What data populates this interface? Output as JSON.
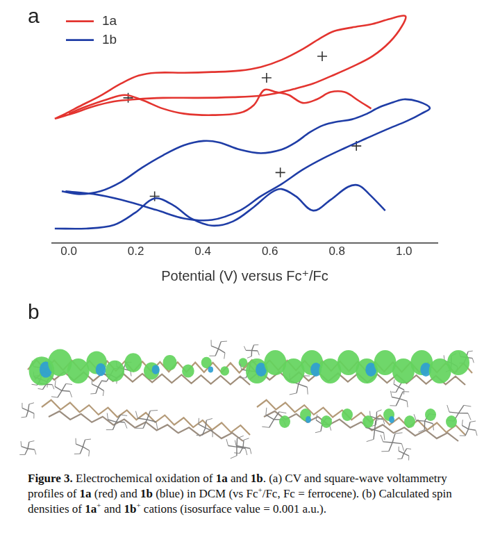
{
  "panel_labels": [
    "a",
    "b"
  ],
  "chart_data": {
    "type": "line",
    "x_label": "Potential (V) versus Fc⁺/Fc",
    "xlim": [
      -0.05,
      1.1
    ],
    "xticks": [
      {
        "value": 0,
        "label": "0.0"
      },
      0.2,
      0.4,
      0.6,
      0.8,
      {
        "value": 1,
        "label": "1.0"
      }
    ],
    "ylim": [
      0,
      330
    ],
    "tick_labels": "x",
    "grid": false,
    "legend": "upper left",
    "series": [
      {
        "name": "1a",
        "color": "#e3342f",
        "cv": {
          "x": [
            -0.042,
            -0.01,
            0.031,
            0.094,
            0.156,
            0.208,
            0.26,
            0.344,
            0.427,
            0.51,
            0.573,
            0.635,
            0.698,
            0.75,
            0.792,
            0.844,
            0.906,
            0.958,
            1.004,
            0.994,
            0.958,
            0.906,
            0.844,
            0.781,
            0.729,
            0.677,
            0.635,
            0.573,
            0.49,
            0.385,
            0.281,
            0.198,
            0.135,
            0.073,
            0.01,
            -0.042
          ],
          "values": [
            173,
            180,
            190,
            205,
            222,
            233,
            237,
            237,
            238,
            240,
            245,
            255,
            270,
            285,
            295,
            300,
            305,
            312,
            316,
            302,
            280,
            260,
            245,
            232,
            222,
            215,
            210,
            205,
            203,
            202,
            202,
            200,
            197,
            190,
            180,
            173
          ]
        },
        "swv": {
          "x": [
            0.0,
            0.052,
            0.115,
            0.167,
            0.219,
            0.281,
            0.344,
            0.427,
            0.51,
            0.552,
            0.583,
            0.619,
            0.656,
            0.698,
            0.74,
            0.781,
            0.823,
            0.865,
            0.902
          ],
          "values": [
            180,
            190,
            200,
            206,
            199,
            187,
            180,
            178,
            181,
            192,
            213,
            210,
            206,
            195,
            200,
            210,
            210,
            198,
            187
          ]
        },
        "peaks": {
          "x": [
            0.177,
            0.59,
            0.756
          ],
          "values": [
            202,
            230,
            260
          ],
          "marker": "cross",
          "color": "#333333"
        }
      },
      {
        "name": "1b",
        "color": "#1f3da6",
        "cv": {
          "x": [
            -0.021,
            0.031,
            0.094,
            0.156,
            0.219,
            0.281,
            0.344,
            0.402,
            0.448,
            0.51,
            0.573,
            0.635,
            0.677,
            0.719,
            0.76,
            0.802,
            0.844,
            0.885,
            0.927,
            0.969,
            1.0,
            1.042,
            1.077,
            1.052,
            1.01,
            0.948,
            0.885,
            0.823,
            0.76,
            0.698,
            0.635,
            0.573,
            0.51,
            0.427,
            0.344,
            0.26,
            0.156,
            0.073,
            -0.01
          ],
          "values": [
            72,
            68,
            72,
            85,
            105,
            122,
            136,
            142,
            140,
            130,
            125,
            130,
            140,
            154,
            164,
            169,
            172,
            179,
            189,
            196,
            200,
            197,
            188,
            180,
            170,
            158,
            145,
            132,
            118,
            102,
            82,
            65,
            45,
            32,
            34,
            46,
            60,
            68,
            72
          ]
        },
        "swv": {
          "x": [
            -0.042,
            0.052,
            0.135,
            0.198,
            0.256,
            0.313,
            0.365,
            0.427,
            0.49,
            0.552,
            0.604,
            0.635,
            0.677,
            0.729,
            0.781,
            0.833,
            0.865,
            0.896,
            0.944
          ],
          "values": [
            20,
            20,
            25,
            42,
            62,
            52,
            34,
            24,
            30,
            50,
            70,
            75,
            65,
            45,
            60,
            78,
            80,
            68,
            45
          ]
        },
        "peaks": {
          "x": [
            0.256,
            0.631,
            0.858
          ],
          "values": [
            65,
            98,
            135
          ],
          "marker": "cross",
          "color": "#333333"
        }
      }
    ]
  },
  "caption": [
    {
      "text": "Figure 3.",
      "bold": true
    },
    {
      "text": " Electrochemical oxidation of "
    },
    {
      "text": "1a",
      "bold": true
    },
    {
      "text": " and "
    },
    {
      "text": "1b",
      "bold": true
    },
    {
      "text": ". (a) CV and square-wave voltammetry profiles of "
    },
    {
      "text": "1a",
      "bold": true
    },
    {
      "text": " (red) and "
    },
    {
      "text": "1b",
      "bold": true
    },
    {
      "text": " (blue) in DCM (vs Fc"
    },
    {
      "text": "+",
      "sup": true
    },
    {
      "text": "/Fc, Fc = ferrocene). (b) Calculated spin densities of "
    },
    {
      "text": "1a",
      "bold": true
    },
    {
      "text": "+",
      "sup": true
    },
    {
      "text": " and "
    },
    {
      "text": "1b",
      "bold": true
    },
    {
      "text": "+",
      "sup": true
    },
    {
      "text": " cations (isosurface value = 0.001 a.u.)."
    }
  ]
}
